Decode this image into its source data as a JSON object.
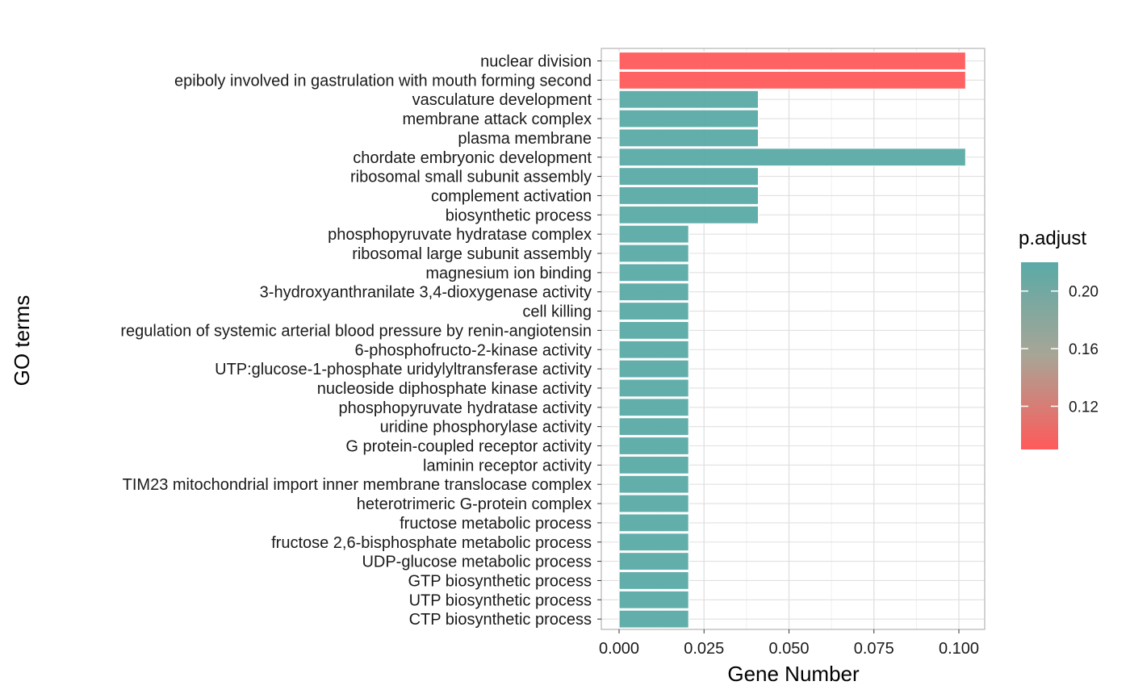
{
  "chart_data": {
    "type": "bar",
    "orientation": "horizontal",
    "xlabel": "Gene Number",
    "ylabel": "GO terms",
    "xlim": [
      0,
      0.105
    ],
    "xticks": [
      0,
      0.025,
      0.05,
      0.075,
      0.1
    ],
    "xtick_labels": [
      "0.000",
      "0.025",
      "0.050",
      "0.075",
      "0.100"
    ],
    "grid": true,
    "categories": [
      "nuclear division",
      "epiboly involved in gastrulation with mouth forming second",
      "vasculature development",
      "membrane attack complex",
      "plasma membrane",
      "chordate embryonic development",
      "ribosomal small subunit assembly",
      "complement activation",
      "biosynthetic process",
      "phosphopyruvate hydratase complex",
      "ribosomal large subunit assembly",
      "magnesium ion binding",
      "3-hydroxyanthranilate 3,4-dioxygenase activity",
      "cell killing",
      "regulation of systemic arterial blood pressure by renin-angiotensin",
      "6-phosphofructo-2-kinase activity",
      "UTP:glucose-1-phosphate uridylyltransferase activity",
      "nucleoside diphosphate kinase activity",
      "phosphopyruvate hydratase activity",
      "uridine phosphorylase activity",
      "G protein-coupled receptor activity",
      "laminin receptor activity",
      "TIM23 mitochondrial import inner membrane translocase complex",
      "heterotrimeric G-protein complex",
      "fructose metabolic process",
      "fructose 2,6-bisphosphate metabolic process",
      "UDP-glucose metabolic process",
      "GTP biosynthetic process",
      "UTP biosynthetic process",
      "CTP biosynthetic process"
    ],
    "values": [
      0.102,
      0.102,
      0.041,
      0.041,
      0.041,
      0.102,
      0.041,
      0.041,
      0.041,
      0.0205,
      0.0205,
      0.0205,
      0.0205,
      0.0205,
      0.0205,
      0.0205,
      0.0205,
      0.0205,
      0.0205,
      0.0205,
      0.0205,
      0.0205,
      0.0205,
      0.0205,
      0.0205,
      0.0205,
      0.0205,
      0.0205,
      0.0205,
      0.0205
    ],
    "p_adjust": [
      0.09,
      0.09,
      0.22,
      0.22,
      0.22,
      0.22,
      0.22,
      0.22,
      0.22,
      0.22,
      0.22,
      0.22,
      0.22,
      0.22,
      0.22,
      0.22,
      0.22,
      0.22,
      0.22,
      0.22,
      0.22,
      0.22,
      0.22,
      0.22,
      0.22,
      0.22,
      0.22,
      0.22,
      0.22,
      0.22
    ],
    "legend": {
      "title": "p.adjust",
      "placement": "right",
      "range": [
        0.09,
        0.22
      ],
      "ticks": [
        0.12,
        0.16,
        0.2
      ],
      "tick_labels": [
        "0.12",
        "0.16",
        "0.20"
      ]
    },
    "colors": {
      "low": "#ff5a5a",
      "high": "#5aaaa7",
      "grid": "#e0e0e0",
      "panel_border": "#b3b3b3"
    }
  }
}
